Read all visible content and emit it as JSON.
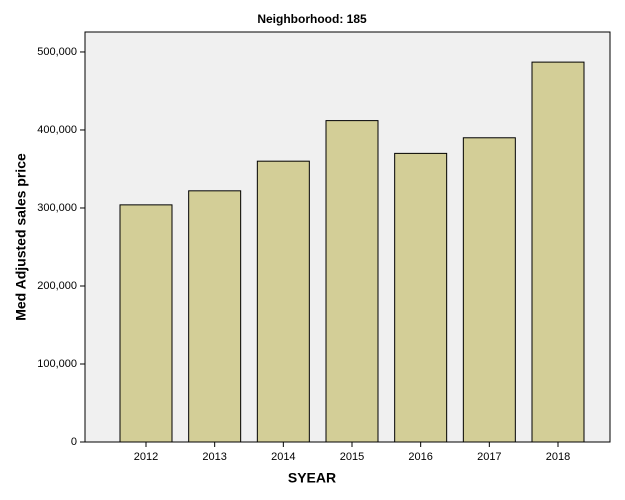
{
  "chart_data": {
    "type": "bar",
    "title": "Neighborhood: 185",
    "x_label": "SYEAR",
    "y_label": "Med Adjusted sales price",
    "categories": [
      "2012",
      "2013",
      "2014",
      "2015",
      "2016",
      "2017",
      "2018"
    ],
    "values": [
      304000,
      322000,
      360000,
      412000,
      370000,
      390000,
      487000
    ],
    "color": "#d3ce97",
    "ylim": [
      0,
      525600
    ],
    "yticks": [
      0,
      {
        "value": 100000,
        "label": "100,000"
      },
      {
        "value": 200000,
        "label": "200,000"
      },
      {
        "value": 300000,
        "label": "300,000"
      },
      {
        "value": 400000,
        "label": "400,000"
      },
      {
        "value": 500000,
        "label": "500,000"
      }
    ],
    "grid": false
  }
}
